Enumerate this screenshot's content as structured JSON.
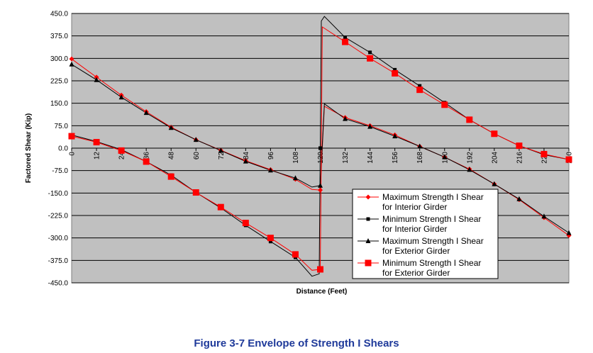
{
  "caption": "Figure 3-7  Envelope of Strength I Shears",
  "chart_data": {
    "type": "line",
    "title": "",
    "xlabel": "Distance (Feet)",
    "ylabel": "Factored Shear (Kip)",
    "xlim": [
      0,
      240
    ],
    "ylim": [
      -450,
      450
    ],
    "x_ticks": [
      "0",
      "12",
      "24",
      "36",
      "48",
      "60",
      "72",
      "84",
      "96",
      "108",
      "120",
      "132",
      "144",
      "156",
      "168",
      "180",
      "192",
      "204",
      "216",
      "228",
      "240"
    ],
    "y_ticks": [
      "450.0",
      "375.0",
      "300.0",
      "225.0",
      "150.0",
      "75.0",
      "0.0",
      "-75.0",
      "-150.0",
      "-225.0",
      "-300.0",
      "-375.0",
      "-450.0"
    ],
    "grid": true,
    "legend_position": "lower-right",
    "colors": {
      "plot_background": "#c0c0c0",
      "grid": "#000000",
      "series_black": "#000000",
      "series_red": "#ff0000",
      "caption": "#1f3a9a"
    },
    "series": [
      {
        "name": "Maximum Strength I Shear for Interior Girder",
        "color": "#ff0000",
        "marker": "diamond",
        "x": [
          0,
          12,
          24,
          36,
          48,
          60,
          72,
          84,
          96,
          108,
          116,
          120,
          122,
          132,
          144,
          156,
          168,
          180,
          192,
          204,
          216,
          228,
          240
        ],
        "y": [
          298,
          237,
          177,
          122,
          70,
          28,
          -7,
          -42,
          -72,
          -104,
          -138,
          -140,
          140,
          102,
          75,
          44,
          6,
          -30,
          -70,
          -120,
          -172,
          -232,
          -292
        ],
        "marker_x": [
          0,
          12,
          24,
          36,
          48,
          60,
          72,
          84,
          96,
          108,
          120,
          132,
          144,
          156,
          168,
          180,
          192,
          204,
          216,
          228,
          240
        ]
      },
      {
        "name": "Minimum Strength I Shear for Interior Girder",
        "color": "#000000",
        "marker": "square",
        "x": [
          0,
          12,
          24,
          36,
          48,
          60,
          72,
          84,
          96,
          108,
          116,
          119.5,
          120,
          120.5,
          122,
          132,
          144,
          156,
          168,
          180,
          192,
          204,
          216,
          228,
          240
        ],
        "y": [
          44,
          22,
          -5,
          -45,
          -90,
          -148,
          -200,
          -258,
          -312,
          -365,
          -428,
          -420,
          0,
          425,
          440,
          370,
          320,
          262,
          208,
          152,
          95,
          48,
          8,
          -22,
          -38
        ],
        "marker_x": [
          0,
          12,
          24,
          36,
          48,
          60,
          72,
          84,
          96,
          108,
          120,
          132,
          144,
          156,
          168,
          180,
          192,
          204,
          216,
          228,
          240
        ]
      },
      {
        "name": "Maximum Strength I Shear for Exterior Girder",
        "color": "#000000",
        "marker": "triangle",
        "x": [
          0,
          12,
          24,
          36,
          48,
          60,
          72,
          84,
          96,
          108,
          116,
          120,
          122,
          132,
          144,
          156,
          168,
          180,
          192,
          204,
          216,
          228,
          240
        ],
        "y": [
          280,
          228,
          170,
          118,
          68,
          28,
          -8,
          -44,
          -74,
          -100,
          -130,
          -125,
          148,
          98,
          72,
          40,
          6,
          -30,
          -72,
          -120,
          -170,
          -228,
          -283
        ],
        "marker_x": [
          0,
          12,
          24,
          36,
          48,
          60,
          72,
          84,
          96,
          108,
          120,
          132,
          144,
          156,
          168,
          180,
          192,
          204,
          216,
          228,
          240
        ]
      },
      {
        "name": "Minimum Strength I Shear for Exterior Girder",
        "color": "#ff0000",
        "marker": "square-large",
        "x": [
          0,
          12,
          24,
          36,
          48,
          60,
          72,
          84,
          96,
          108,
          116,
          120,
          120.5,
          121,
          132,
          144,
          156,
          168,
          180,
          192,
          204,
          216,
          228,
          240
        ],
        "y": [
          40,
          20,
          -8,
          -45,
          -95,
          -148,
          -197,
          -250,
          -300,
          -355,
          -408,
          -405,
          0,
          405,
          355,
          300,
          250,
          195,
          145,
          95,
          48,
          8,
          -20,
          -38
        ],
        "marker_x": [
          0,
          12,
          24,
          36,
          48,
          60,
          72,
          84,
          96,
          108,
          120,
          132,
          144,
          156,
          168,
          180,
          192,
          204,
          216,
          228,
          240
        ]
      }
    ]
  }
}
